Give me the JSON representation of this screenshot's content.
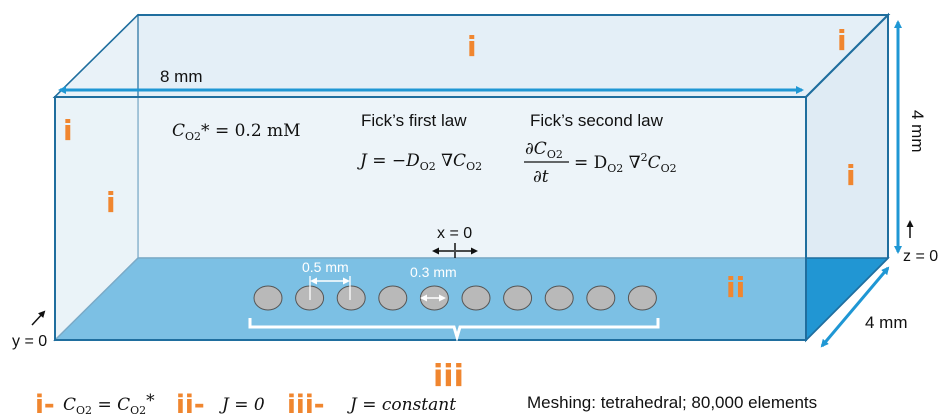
{
  "colors": {
    "accent": "#1f97d4",
    "box_edge": "#1f6e9e",
    "box_fill": "#e6f1f8",
    "floor": "#2196d3",
    "electrode": "#b9b9b9",
    "label": "#f0862f"
  },
  "dims": {
    "length": "8 mm",
    "height": "4 mm",
    "depth": "4 mm"
  },
  "coords": {
    "x0": "x = 0",
    "y0": "y = 0",
    "z0": "z = 0"
  },
  "electrodes": {
    "count": 10,
    "pitch": "0.5 mm",
    "diameter": "0.3 mm"
  },
  "boundary_labels": {
    "i": "i",
    "ii": "ii",
    "iii": "iii"
  },
  "equations": {
    "concentration": "Cₒ₂* = 0.2 mM",
    "c_symbol": "C",
    "o2_sub": "O2",
    "c_value": "* = 0.2 mM",
    "first_law_title": "Fick’s first law",
    "first_law_lhs": "J = −D",
    "first_law_mid": " ∇C",
    "second_law_title": "Fick’s second law",
    "second_law_num": "∂C",
    "second_law_den": "∂t",
    "second_law_rhs": "= D",
    "second_law_rhs2": " ∇",
    "second_law_sup": "2",
    "second_law_rhs3": "C"
  },
  "legend": {
    "i_key": "i-",
    "i_expr_1": "C",
    "i_sub": "O2",
    "i_expr_2": " = C",
    "i_sub_2": "O2",
    "i_expr_3": "*",
    "ii_key": "ii-",
    "ii_expr": "J = 0",
    "iii_key": "iii-",
    "iii_expr": "J = constant"
  },
  "meshing": "Meshing: tetrahedral; 80,000 elements"
}
